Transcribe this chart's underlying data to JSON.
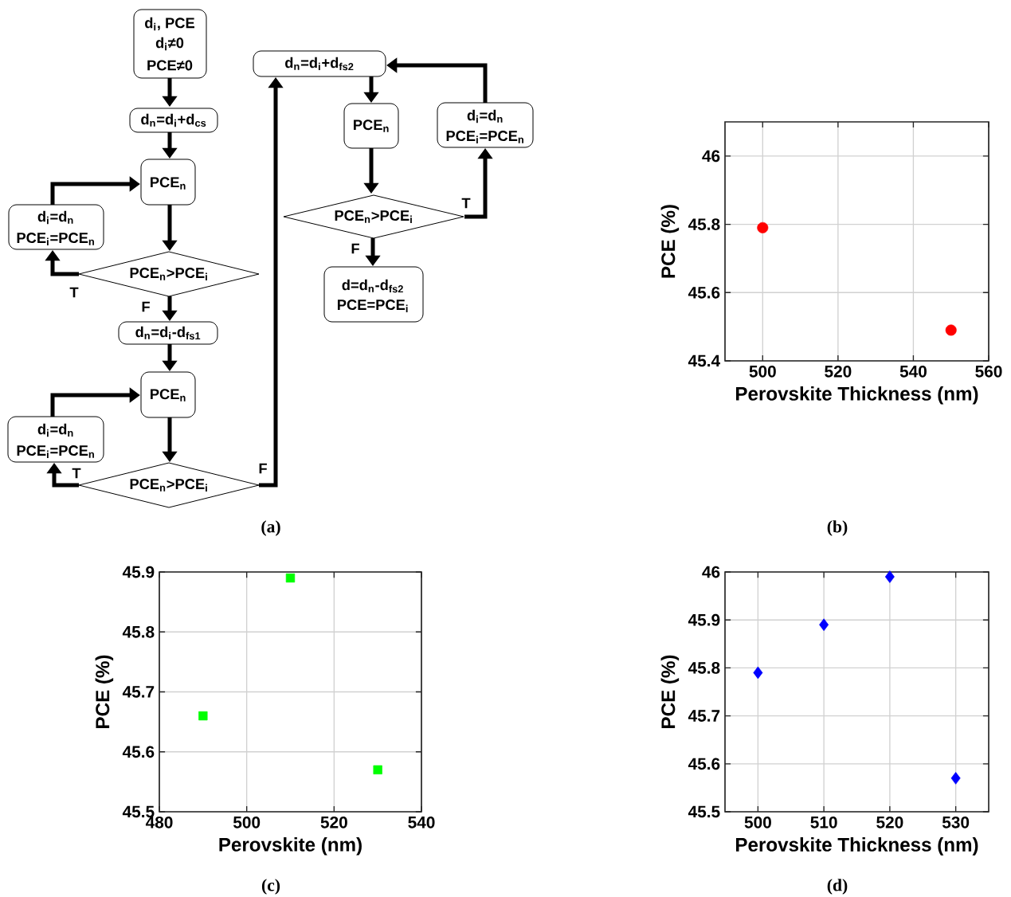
{
  "chart_data": [
    {
      "type": "other",
      "annotations": [
        "d$_{i}$, PCE",
        "d$_{i}$≠0",
        "PCE≠0",
        "d$_{n}$=d$_{i}$+d$_{cs}$",
        "PCE$_{n}$",
        "d$_{i}$=d$_{n}$",
        "PCE$_{i}$=PCE$_{n}$",
        "PCE$_{n}$>PCE$_{i}$",
        "T",
        "F",
        "d$_{n}$=d$_{i}$-d$_{fs1}$",
        "PCE$_{n}$",
        "d$_{i}$=d$_{n}$",
        "PCE$_{i}$=PCE$_{n}$",
        "PCE$_{n}$>PCE$_{i}$",
        "T",
        "F",
        "d$_{n}$=d$_{i}$+d$_{fs2}$",
        "PCE$_{n}$",
        "d$_{i}$=d$_{n}$",
        "PCE$_{i}$=PCE$_{n}$",
        "PCE$_{n}$>PCE$_{i}$",
        "T",
        "F",
        "d=d$_{n}$-d$_{fs2}$",
        "PCE=PCE$_{i}$",
        "(a)"
      ]
    },
    {
      "type": "scatter",
      "x": [
        500,
        550
      ],
      "values": [
        45.79,
        45.49
      ],
      "color": "#ff0000",
      "marker": "circle",
      "xlim": [
        490,
        560
      ],
      "ylim": [
        45.4,
        46.1
      ],
      "xticks": [
        500,
        520,
        540,
        560
      ],
      "yticks": [
        45.4,
        45.6,
        45.8,
        46
      ],
      "xlabel": "Perovskite Thickness (nm)",
      "ylabel": "PCE (%)",
      "grid": true,
      "annotations": [
        "(b)"
      ]
    },
    {
      "type": "scatter",
      "x": [
        490,
        510,
        530
      ],
      "values": [
        45.66,
        45.89,
        45.57
      ],
      "color": "#00ff00",
      "marker": "square",
      "xlim": [
        480,
        540
      ],
      "ylim": [
        45.5,
        45.9
      ],
      "xticks": [
        480,
        500,
        520,
        540
      ],
      "yticks": [
        45.5,
        45.6,
        45.7,
        45.8,
        45.9
      ],
      "xlabel": "Perovskite (nm)",
      "ylabel": "PCE (%)",
      "grid": true,
      "annotations": [
        "(c)"
      ]
    },
    {
      "type": "scatter",
      "x": [
        500,
        510,
        520,
        530
      ],
      "values": [
        45.79,
        45.89,
        45.99,
        45.57
      ],
      "color": "#0000ff",
      "marker": "diamond",
      "xlim": [
        495,
        535
      ],
      "ylim": [
        45.5,
        46
      ],
      "xticks": [
        500,
        510,
        520,
        530
      ],
      "yticks": [
        45.5,
        45.6,
        45.7,
        45.8,
        45.9,
        46
      ],
      "xlabel": "Perovskite Thickness (nm)",
      "ylabel": "PCE (%)",
      "grid": true,
      "annotations": [
        "(d)"
      ]
    }
  ]
}
